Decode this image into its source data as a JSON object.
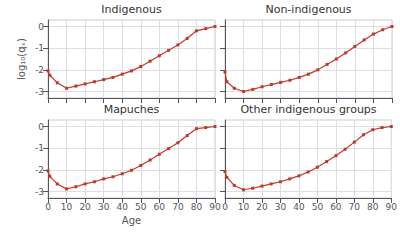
{
  "chart_data": [
    {
      "type": "line",
      "title": "Indigenous",
      "x": [
        0,
        1,
        5,
        10,
        15,
        20,
        25,
        30,
        35,
        40,
        45,
        50,
        55,
        60,
        65,
        70,
        75,
        80,
        85,
        90
      ],
      "values": [
        -2.05,
        -2.25,
        -2.6,
        -2.85,
        -2.75,
        -2.65,
        -2.55,
        -2.45,
        -2.35,
        -2.2,
        -2.05,
        -1.85,
        -1.6,
        -1.35,
        -1.1,
        -0.85,
        -0.55,
        -0.2,
        -0.1,
        0.0
      ],
      "color": "#c0392b",
      "marker": "square",
      "xlim": [
        0,
        90
      ],
      "ylim": [
        -3.3,
        0.3
      ],
      "xticks": [
        0,
        10,
        20,
        30,
        40,
        50,
        60,
        70,
        80,
        90
      ],
      "yticks": [
        0,
        -1,
        -2,
        -3
      ],
      "grid": true,
      "ylabel": "log₁₀(qₓ)",
      "tick_labels": "y"
    },
    {
      "type": "line",
      "title": "Non-indigenous",
      "x": [
        0,
        1,
        5,
        10,
        15,
        20,
        25,
        30,
        35,
        40,
        45,
        50,
        55,
        60,
        65,
        70,
        75,
        80,
        85,
        90
      ],
      "values": [
        -2.1,
        -2.55,
        -2.85,
        -3.0,
        -2.9,
        -2.78,
        -2.68,
        -2.58,
        -2.48,
        -2.35,
        -2.2,
        -2.0,
        -1.75,
        -1.5,
        -1.22,
        -0.92,
        -0.62,
        -0.35,
        -0.15,
        0.0
      ],
      "color": "#c0392b",
      "marker": "square",
      "xlim": [
        0,
        90
      ],
      "ylim": [
        -3.3,
        0.3
      ],
      "xticks": [
        0,
        10,
        20,
        30,
        40,
        50,
        60,
        70,
        80,
        90
      ],
      "yticks": [
        0,
        -1,
        -2,
        -3
      ],
      "grid": true,
      "tick_labels": false
    },
    {
      "type": "line",
      "title": "Mapuches",
      "x": [
        0,
        1,
        5,
        10,
        15,
        20,
        25,
        30,
        35,
        40,
        45,
        50,
        55,
        60,
        65,
        70,
        75,
        80,
        85,
        90
      ],
      "values": [
        -2.05,
        -2.3,
        -2.65,
        -2.88,
        -2.78,
        -2.65,
        -2.55,
        -2.42,
        -2.32,
        -2.18,
        -2.02,
        -1.8,
        -1.55,
        -1.28,
        -1.02,
        -0.75,
        -0.42,
        -0.1,
        -0.05,
        0.0
      ],
      "color": "#c0392b",
      "marker": "square",
      "xlim": [
        0,
        90
      ],
      "ylim": [
        -3.3,
        0.3
      ],
      "xticks": [
        0,
        10,
        20,
        30,
        40,
        50,
        60,
        70,
        80,
        90
      ],
      "yticks": [
        0,
        -1,
        -2,
        -3
      ],
      "grid": true,
      "xlabel": "Age"
    },
    {
      "type": "line",
      "title": "Other indigenous groups",
      "x": [
        0,
        1,
        5,
        10,
        15,
        20,
        25,
        30,
        35,
        40,
        45,
        50,
        55,
        60,
        65,
        70,
        75,
        80,
        85,
        90
      ],
      "values": [
        -2.08,
        -2.35,
        -2.72,
        -2.92,
        -2.85,
        -2.75,
        -2.65,
        -2.55,
        -2.42,
        -2.28,
        -2.1,
        -1.88,
        -1.62,
        -1.35,
        -1.05,
        -0.72,
        -0.38,
        -0.15,
        -0.05,
        0.0
      ],
      "color": "#c0392b",
      "marker": "square",
      "xlim": [
        0,
        90
      ],
      "ylim": [
        -3.3,
        0.3
      ],
      "xticks": [
        0,
        10,
        20,
        30,
        40,
        50,
        60,
        70,
        80,
        90
      ],
      "yticks": [
        0,
        -1,
        -2,
        -3
      ],
      "grid": true,
      "tick_labels": "x"
    }
  ]
}
